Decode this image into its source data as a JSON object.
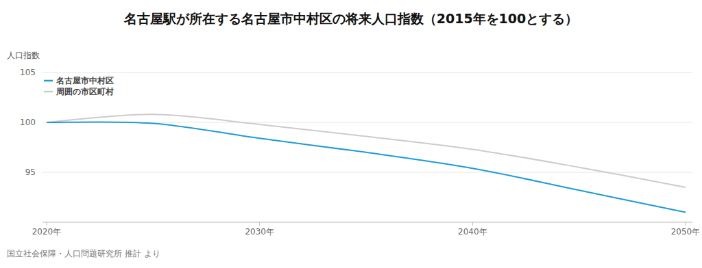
{
  "chart_data": {
    "type": "line",
    "title": "名古屋駅が所在する名古屋市中村区の将来人口指数（2015年を100とする）",
    "y_label": "人口指数",
    "source": "国立社会保障・人口問題研究所 推計 より",
    "x": [
      2020,
      2025,
      2030,
      2035,
      2040,
      2045,
      2050
    ],
    "series": [
      {
        "name": "名古屋市中村区",
        "color": "#1f9bd7",
        "values": [
          100,
          99.9,
          98.4,
          97.0,
          95.4,
          93.2,
          91.0
        ]
      },
      {
        "name": "周囲の市区町村",
        "color": "#cccccc",
        "values": [
          100,
          100.8,
          99.8,
          98.6,
          97.3,
          95.5,
          93.5
        ]
      }
    ],
    "xlim": [
      2020,
      2050
    ],
    "xticks": [
      {
        "value": 2020,
        "label": "2020年"
      },
      {
        "value": 2030,
        "label": "2030年"
      },
      {
        "value": 2040,
        "label": "2040年"
      },
      {
        "value": 2050,
        "label": "2050年"
      }
    ],
    "ylim": [
      90,
      105
    ],
    "yticks": [
      95,
      100,
      105
    ],
    "grid": true,
    "legend": "upper-left"
  }
}
